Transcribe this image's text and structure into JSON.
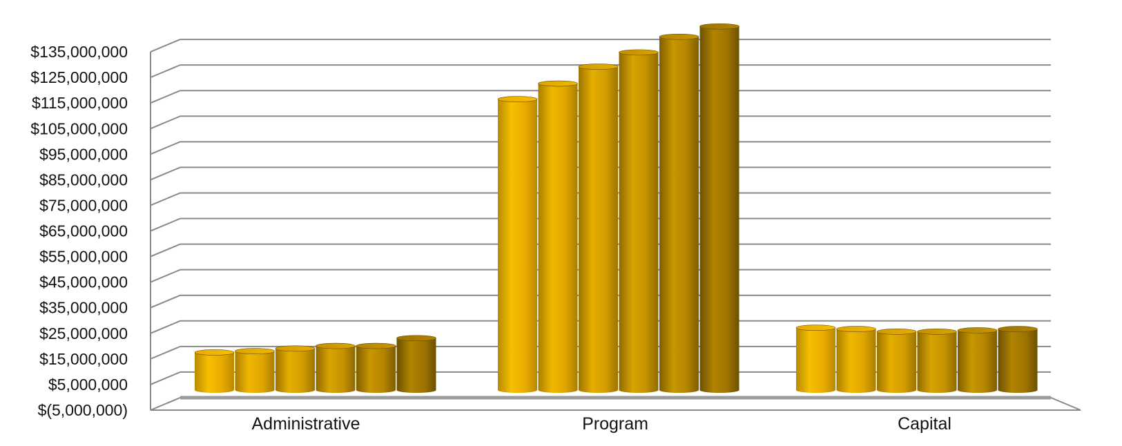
{
  "chart_data": {
    "type": "bar",
    "title": "",
    "xlabel": "",
    "ylabel": "",
    "categories": [
      "Administrative",
      "Program",
      "Capital"
    ],
    "series": [
      {
        "values": [
          14500000,
          112000000,
          24000000
        ]
      },
      {
        "values": [
          15000000,
          118000000,
          23500000
        ]
      },
      {
        "values": [
          16000000,
          124500000,
          22500000
        ]
      },
      {
        "values": [
          17000000,
          130000000,
          22500000
        ]
      },
      {
        "values": [
          17000000,
          136000000,
          23000000
        ]
      },
      {
        "values": [
          20000000,
          140000000,
          23500000
        ]
      }
    ],
    "ylim": [
      -5000000,
      145000000
    ],
    "yticks": [
      "$135,000,000",
      "$125,000,000",
      "$115,000,000",
      "$105,000,000",
      "$95,000,000",
      "$85,000,000",
      "$75,000,000",
      "$65,000,000",
      "$55,000,000",
      "$45,000,000",
      "$35,000,000",
      "$25,000,000",
      "$15,000,000",
      "$5,000,000",
      "$(5,000,000)"
    ],
    "grid": true,
    "legend": "none",
    "colors": {
      "bar_light": "#f5b800",
      "bar_dark": "#8a6400",
      "grid": "#888888"
    }
  }
}
